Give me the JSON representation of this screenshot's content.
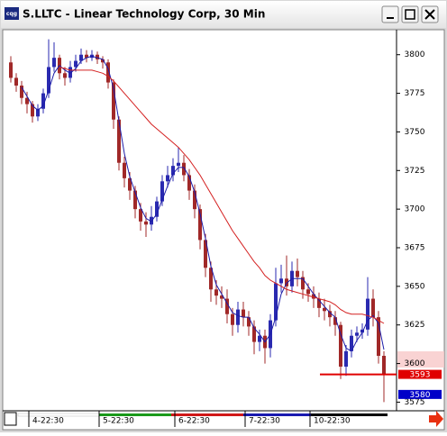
{
  "chart_data": {
    "type": "candlestick",
    "title": "S.LLTC - Linear Technology Corp, 30 Min",
    "up_color": "#2a2ab0",
    "down_color": "#a02828",
    "ylim": [
      3570,
      3815
    ],
    "yticks": [
      3575,
      3600,
      3625,
      3650,
      3675,
      3700,
      3725,
      3750,
      3775,
      3800
    ],
    "xticks": [
      {
        "value": 4,
        "label": "4-22:30"
      },
      {
        "value": 17,
        "label": "5-22:30"
      },
      {
        "value": 31,
        "label": "6-22:30"
      },
      {
        "value": 44,
        "label": "7-22:30"
      },
      {
        "value": 56,
        "label": "10-22:30"
      }
    ],
    "open": [
      3795,
      3785,
      3780,
      3772,
      3768,
      3760,
      3765,
      3775,
      3792,
      3798,
      3788,
      3785,
      3792,
      3796,
      3800,
      3798,
      3800,
      3797,
      3795,
      3782,
      3758,
      3730,
      3720,
      3712,
      3700,
      3692,
      3690,
      3695,
      3705,
      3718,
      3722,
      3728,
      3730,
      3722,
      3712,
      3700,
      3680,
      3662,
      3648,
      3644,
      3642,
      3632,
      3625,
      3635,
      3630,
      3624,
      3614,
      3618,
      3610,
      3628,
      3652,
      3655,
      3650,
      3660,
      3656,
      3648,
      3645,
      3642,
      3636,
      3634,
      3630,
      3625,
      3598,
      3608,
      3618,
      3620,
      3622,
      3642,
      3630,
      3605
    ],
    "high": [
      3799,
      3788,
      3783,
      3776,
      3770,
      3768,
      3778,
      3810,
      3808,
      3800,
      3792,
      3796,
      3800,
      3804,
      3803,
      3803,
      3802,
      3799,
      3797,
      3784,
      3760,
      3734,
      3724,
      3715,
      3704,
      3698,
      3702,
      3708,
      3722,
      3728,
      3733,
      3740,
      3735,
      3726,
      3716,
      3703,
      3684,
      3666,
      3654,
      3650,
      3648,
      3636,
      3640,
      3640,
      3634,
      3628,
      3622,
      3622,
      3632,
      3662,
      3664,
      3670,
      3666,
      3668,
      3660,
      3652,
      3650,
      3646,
      3642,
      3638,
      3634,
      3627,
      3612,
      3622,
      3624,
      3626,
      3656,
      3648,
      3634,
      3608
    ],
    "low": [
      3782,
      3776,
      3768,
      3762,
      3756,
      3757,
      3762,
      3772,
      3789,
      3784,
      3780,
      3782,
      3789,
      3794,
      3795,
      3796,
      3794,
      3791,
      3778,
      3752,
      3725,
      3714,
      3706,
      3694,
      3686,
      3682,
      3686,
      3692,
      3702,
      3714,
      3718,
      3724,
      3718,
      3706,
      3694,
      3674,
      3656,
      3640,
      3638,
      3636,
      3626,
      3618,
      3620,
      3624,
      3618,
      3606,
      3608,
      3600,
      3604,
      3624,
      3646,
      3644,
      3646,
      3650,
      3642,
      3640,
      3636,
      3630,
      3628,
      3624,
      3618,
      3590,
      3592,
      3604,
      3614,
      3616,
      3618,
      3624,
      3600,
      3575
    ],
    "close": [
      3785,
      3780,
      3772,
      3768,
      3760,
      3765,
      3775,
      3792,
      3798,
      3788,
      3785,
      3792,
      3796,
      3800,
      3798,
      3800,
      3797,
      3795,
      3782,
      3758,
      3730,
      3720,
      3712,
      3700,
      3692,
      3690,
      3695,
      3705,
      3718,
      3722,
      3728,
      3730,
      3722,
      3712,
      3700,
      3680,
      3662,
      3648,
      3644,
      3642,
      3632,
      3625,
      3635,
      3630,
      3624,
      3614,
      3618,
      3610,
      3628,
      3652,
      3655,
      3650,
      3660,
      3656,
      3648,
      3645,
      3642,
      3636,
      3634,
      3630,
      3625,
      3598,
      3608,
      3618,
      3620,
      3622,
      3642,
      3630,
      3605,
      3593
    ],
    "series": [
      {
        "color": "#1c1ca8",
        "values": [
          null,
          null,
          3779,
          3773,
          3767,
          3764,
          3767,
          3777,
          3788,
          3793,
          3790,
          3788,
          3791,
          3796,
          3798,
          3799,
          3798,
          3797,
          3791,
          3778,
          3757,
          3736,
          3721,
          3711,
          3701,
          3694,
          3692,
          3697,
          3706,
          3715,
          3723,
          3727,
          3727,
          3721,
          3711,
          3697,
          3681,
          3663,
          3651,
          3645,
          3639,
          3633,
          3631,
          3630,
          3630,
          3623,
          3619,
          3614,
          3619,
          3630,
          3645,
          3652,
          3655,
          3655,
          3655,
          3650,
          3645,
          3641,
          3637,
          3633,
          3630,
          3619,
          3610,
          3608,
          3615,
          3620,
          3628,
          3631,
          3626,
          3609
        ]
      },
      {
        "color": "#d42020",
        "values": [
          null,
          null,
          null,
          null,
          null,
          null,
          null,
          null,
          null,
          3792,
          3791,
          3790,
          3790,
          3790,
          3790,
          3790,
          3789,
          3788,
          3786,
          3783,
          3779,
          3775,
          3771,
          3767,
          3763,
          3759,
          3755,
          3752,
          3749,
          3746,
          3743,
          3740,
          3736,
          3732,
          3727,
          3722,
          3716,
          3710,
          3704,
          3698,
          3692,
          3686,
          3681,
          3676,
          3671,
          3666,
          3662,
          3657,
          3654,
          3652,
          3650,
          3648,
          3647,
          3646,
          3645,
          3644,
          3643,
          3642,
          3641,
          3640,
          3638,
          3635,
          3633,
          3632,
          3632,
          3632,
          3631,
          3630,
          3628,
          3626
        ]
      }
    ],
    "price_tags": [
      {
        "value": 3593,
        "color": "#e00000"
      },
      {
        "value": 3580,
        "color": "#0000c8"
      }
    ]
  }
}
